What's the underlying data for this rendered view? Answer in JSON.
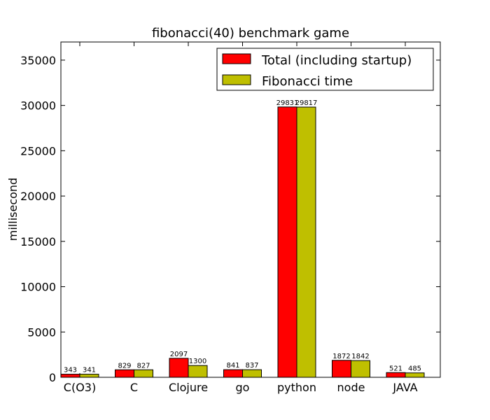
{
  "chart_data": {
    "type": "bar",
    "title": "fibonacci(40) benchmark game",
    "xlabel": "",
    "ylabel": "millisecond",
    "categories": [
      "C(O3)",
      "C",
      "Clojure",
      "go",
      "python",
      "node",
      "JAVA"
    ],
    "series": [
      {
        "name": "Total (including startup)",
        "color": "#ff0000",
        "values": [
          343,
          829,
          2097,
          841,
          29831,
          1872,
          521
        ]
      },
      {
        "name": "Fibonacci time",
        "color": "#bfbf00",
        "values": [
          341,
          827,
          1300,
          837,
          29817,
          1842,
          485
        ]
      }
    ],
    "ylim": [
      0,
      37000
    ],
    "yticks": [
      0,
      5000,
      10000,
      15000,
      20000,
      25000,
      30000,
      35000
    ],
    "legend": {
      "position": "top-right",
      "entries": [
        "Total (including startup)",
        "Fibonacci time"
      ]
    },
    "grid": false
  }
}
